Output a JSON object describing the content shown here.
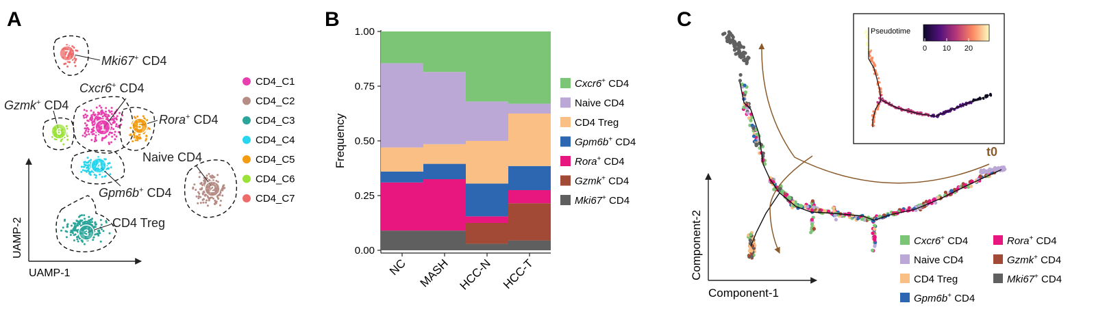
{
  "panels": {
    "A": {
      "letter": "A",
      "xlabel": "UAMP-1",
      "ylabel": "UAMP-2",
      "legend": [
        {
          "label": "CD4_C1",
          "color": "#E83FAF"
        },
        {
          "label": "CD4_C2",
          "color": "#B58C86"
        },
        {
          "label": "CD4_C3",
          "color": "#2BA59A"
        },
        {
          "label": "CD4_C4",
          "color": "#27D6EE"
        },
        {
          "label": "CD4_C5",
          "color": "#F39C12"
        },
        {
          "label": "CD4_C6",
          "color": "#9BE238"
        },
        {
          "label": "CD4_C7",
          "color": "#EE6B6B"
        }
      ],
      "clusters": [
        {
          "num": "1",
          "italic": "Cxcr6",
          "sup": "+",
          "rest": " CD4"
        },
        {
          "num": "2",
          "italic": "",
          "sup": "",
          "rest": "Naive CD4"
        },
        {
          "num": "3",
          "italic": "",
          "sup": "",
          "rest": "CD4 Treg"
        },
        {
          "num": "4",
          "italic": "Gpm6b",
          "sup": "+",
          "rest": " CD4"
        },
        {
          "num": "5",
          "italic": "Rora",
          "sup": "+",
          "rest": " CD4"
        },
        {
          "num": "6",
          "italic": "Gzmk",
          "sup": "+",
          "rest": " CD4"
        },
        {
          "num": "7",
          "italic": "Mki67",
          "sup": "+",
          "rest": " CD4"
        }
      ]
    },
    "B": {
      "letter": "B"
    },
    "C": {
      "letter": "C",
      "xlabel": "Component-1",
      "ylabel": "Component-2",
      "inset_title": "Pseudotime",
      "inset_ticks": [
        "0",
        "10",
        "20"
      ],
      "t0_label": "t0",
      "legend": [
        {
          "italic": "Cxcr6",
          "sup": "+",
          "rest": " CD4",
          "color": "#7CC576"
        },
        {
          "italic": "",
          "sup": "",
          "rest": "Naive CD4",
          "color": "#BCA8D6"
        },
        {
          "italic": "",
          "sup": "",
          "rest": "CD4 Treg",
          "color": "#F9BF85"
        },
        {
          "italic": "Gpm6b",
          "sup": "+",
          "rest": " CD4",
          "color": "#2E67B1"
        },
        {
          "italic": "Rora",
          "sup": "+",
          "rest": " CD4",
          "color": "#E8177F"
        },
        {
          "italic": "Gzmk",
          "sup": "+",
          "rest": " CD4",
          "color": "#A24A36"
        },
        {
          "italic": "Mki67",
          "sup": "+",
          "rest": " CD4",
          "color": "#606060"
        }
      ]
    }
  },
  "chart_data": {
    "type": "bar",
    "stacked": true,
    "ylabel": "Frequency",
    "xlabel": "",
    "categories": [
      "NC",
      "MASH",
      "HCC-N",
      "HCC-T"
    ],
    "ylim": [
      0,
      1
    ],
    "yticks": [
      "0.00",
      "0.25",
      "0.50",
      "0.75",
      "1.00"
    ],
    "series": [
      {
        "name": "Mki67+ CD4",
        "label_italic": "Mki67",
        "label_sup": "+",
        "label_rest": " CD4",
        "color": "#5F5F5F",
        "values": [
          0.09,
          0.09,
          0.03,
          0.045
        ]
      },
      {
        "name": "Gzmk+ CD4",
        "label_italic": "Gzmk",
        "label_sup": "+",
        "label_rest": " CD4",
        "color": "#A24A36",
        "values": [
          0.0,
          0.0,
          0.095,
          0.17
        ]
      },
      {
        "name": "Rora+ CD4",
        "label_italic": "Rora",
        "label_sup": "+",
        "label_rest": " CD4",
        "color": "#E8177F",
        "values": [
          0.22,
          0.235,
          0.03,
          0.06
        ]
      },
      {
        "name": "Gpm6b+ CD4",
        "label_italic": "Gpm6b",
        "label_sup": "+",
        "label_rest": " CD4",
        "color": "#2E67B1",
        "values": [
          0.05,
          0.07,
          0.15,
          0.11
        ]
      },
      {
        "name": "CD4 Treg",
        "label_italic": "",
        "label_sup": "",
        "label_rest": "CD4 Treg",
        "color": "#F9BF85",
        "values": [
          0.11,
          0.09,
          0.195,
          0.24
        ]
      },
      {
        "name": "Naive CD4",
        "label_italic": "",
        "label_sup": "",
        "label_rest": "Naive CD4",
        "color": "#BCA8D6",
        "values": [
          0.385,
          0.33,
          0.18,
          0.045
        ]
      },
      {
        "name": "Cxcr6+ CD4",
        "label_italic": "Cxcr6",
        "label_sup": "+",
        "label_rest": " CD4",
        "color": "#7CC576",
        "values": [
          0.145,
          0.185,
          0.32,
          0.33
        ]
      }
    ]
  }
}
